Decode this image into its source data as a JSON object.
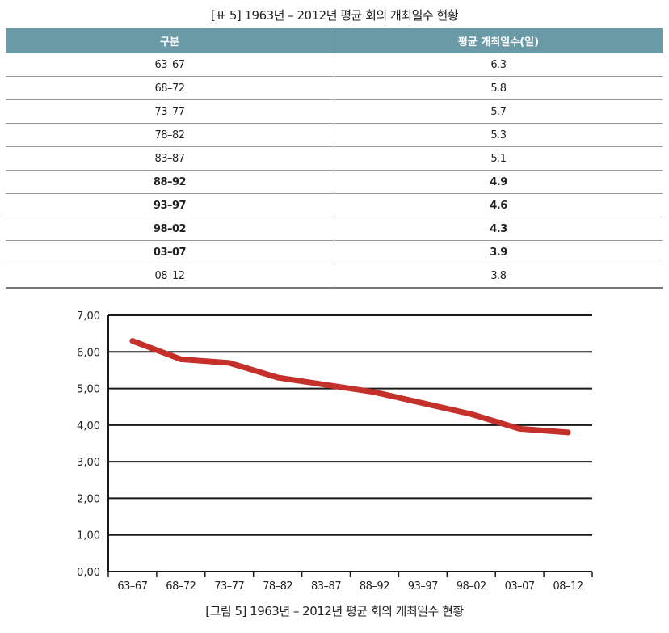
{
  "table": {
    "caption": "[표 5] 1963년 – 2012년 평균 회의 개최일수 현황",
    "headers": [
      "구분",
      "평균 개최일수(일)"
    ],
    "rows": [
      {
        "period": "63–67",
        "value": "6.3",
        "bold": false
      },
      {
        "period": "68–72",
        "value": "5.8",
        "bold": false
      },
      {
        "period": "73–77",
        "value": "5.7",
        "bold": false
      },
      {
        "period": "78–82",
        "value": "5.3",
        "bold": false
      },
      {
        "period": "83–87",
        "value": "5.1",
        "bold": false
      },
      {
        "period": "88–92",
        "value": "4.9",
        "bold": true
      },
      {
        "period": "93–97",
        "value": "4.6",
        "bold": true
      },
      {
        "period": "98–02",
        "value": "4.3",
        "bold": true
      },
      {
        "period": "03–07",
        "value": "3.9",
        "bold": true
      },
      {
        "period": "08–12",
        "value": "3.8",
        "bold": false
      }
    ]
  },
  "chart_data": {
    "type": "line",
    "title": "",
    "xlabel": "",
    "ylabel": "",
    "categories": [
      "63–67",
      "68–72",
      "73–77",
      "78–82",
      "83–87",
      "88–92",
      "93–97",
      "98–02",
      "03–07",
      "08–12"
    ],
    "series": [
      {
        "values": [
          6.3,
          5.8,
          5.7,
          5.3,
          5.1,
          4.9,
          4.6,
          4.3,
          3.9,
          3.8
        ],
        "color": "#c5302a"
      }
    ],
    "ylim": [
      0,
      7
    ],
    "yticks": [
      0,
      1,
      2,
      3,
      4,
      5,
      6,
      7
    ],
    "ytick_labels": [
      "0,00",
      "1,00",
      "2,00",
      "3,00",
      "4,00",
      "5,00",
      "6,00",
      "7,00"
    ],
    "grid": true,
    "legend": "none"
  },
  "figure": {
    "caption": "[그림 5] 1963년 – 2012년 평균 회의 개최일수 현황"
  }
}
